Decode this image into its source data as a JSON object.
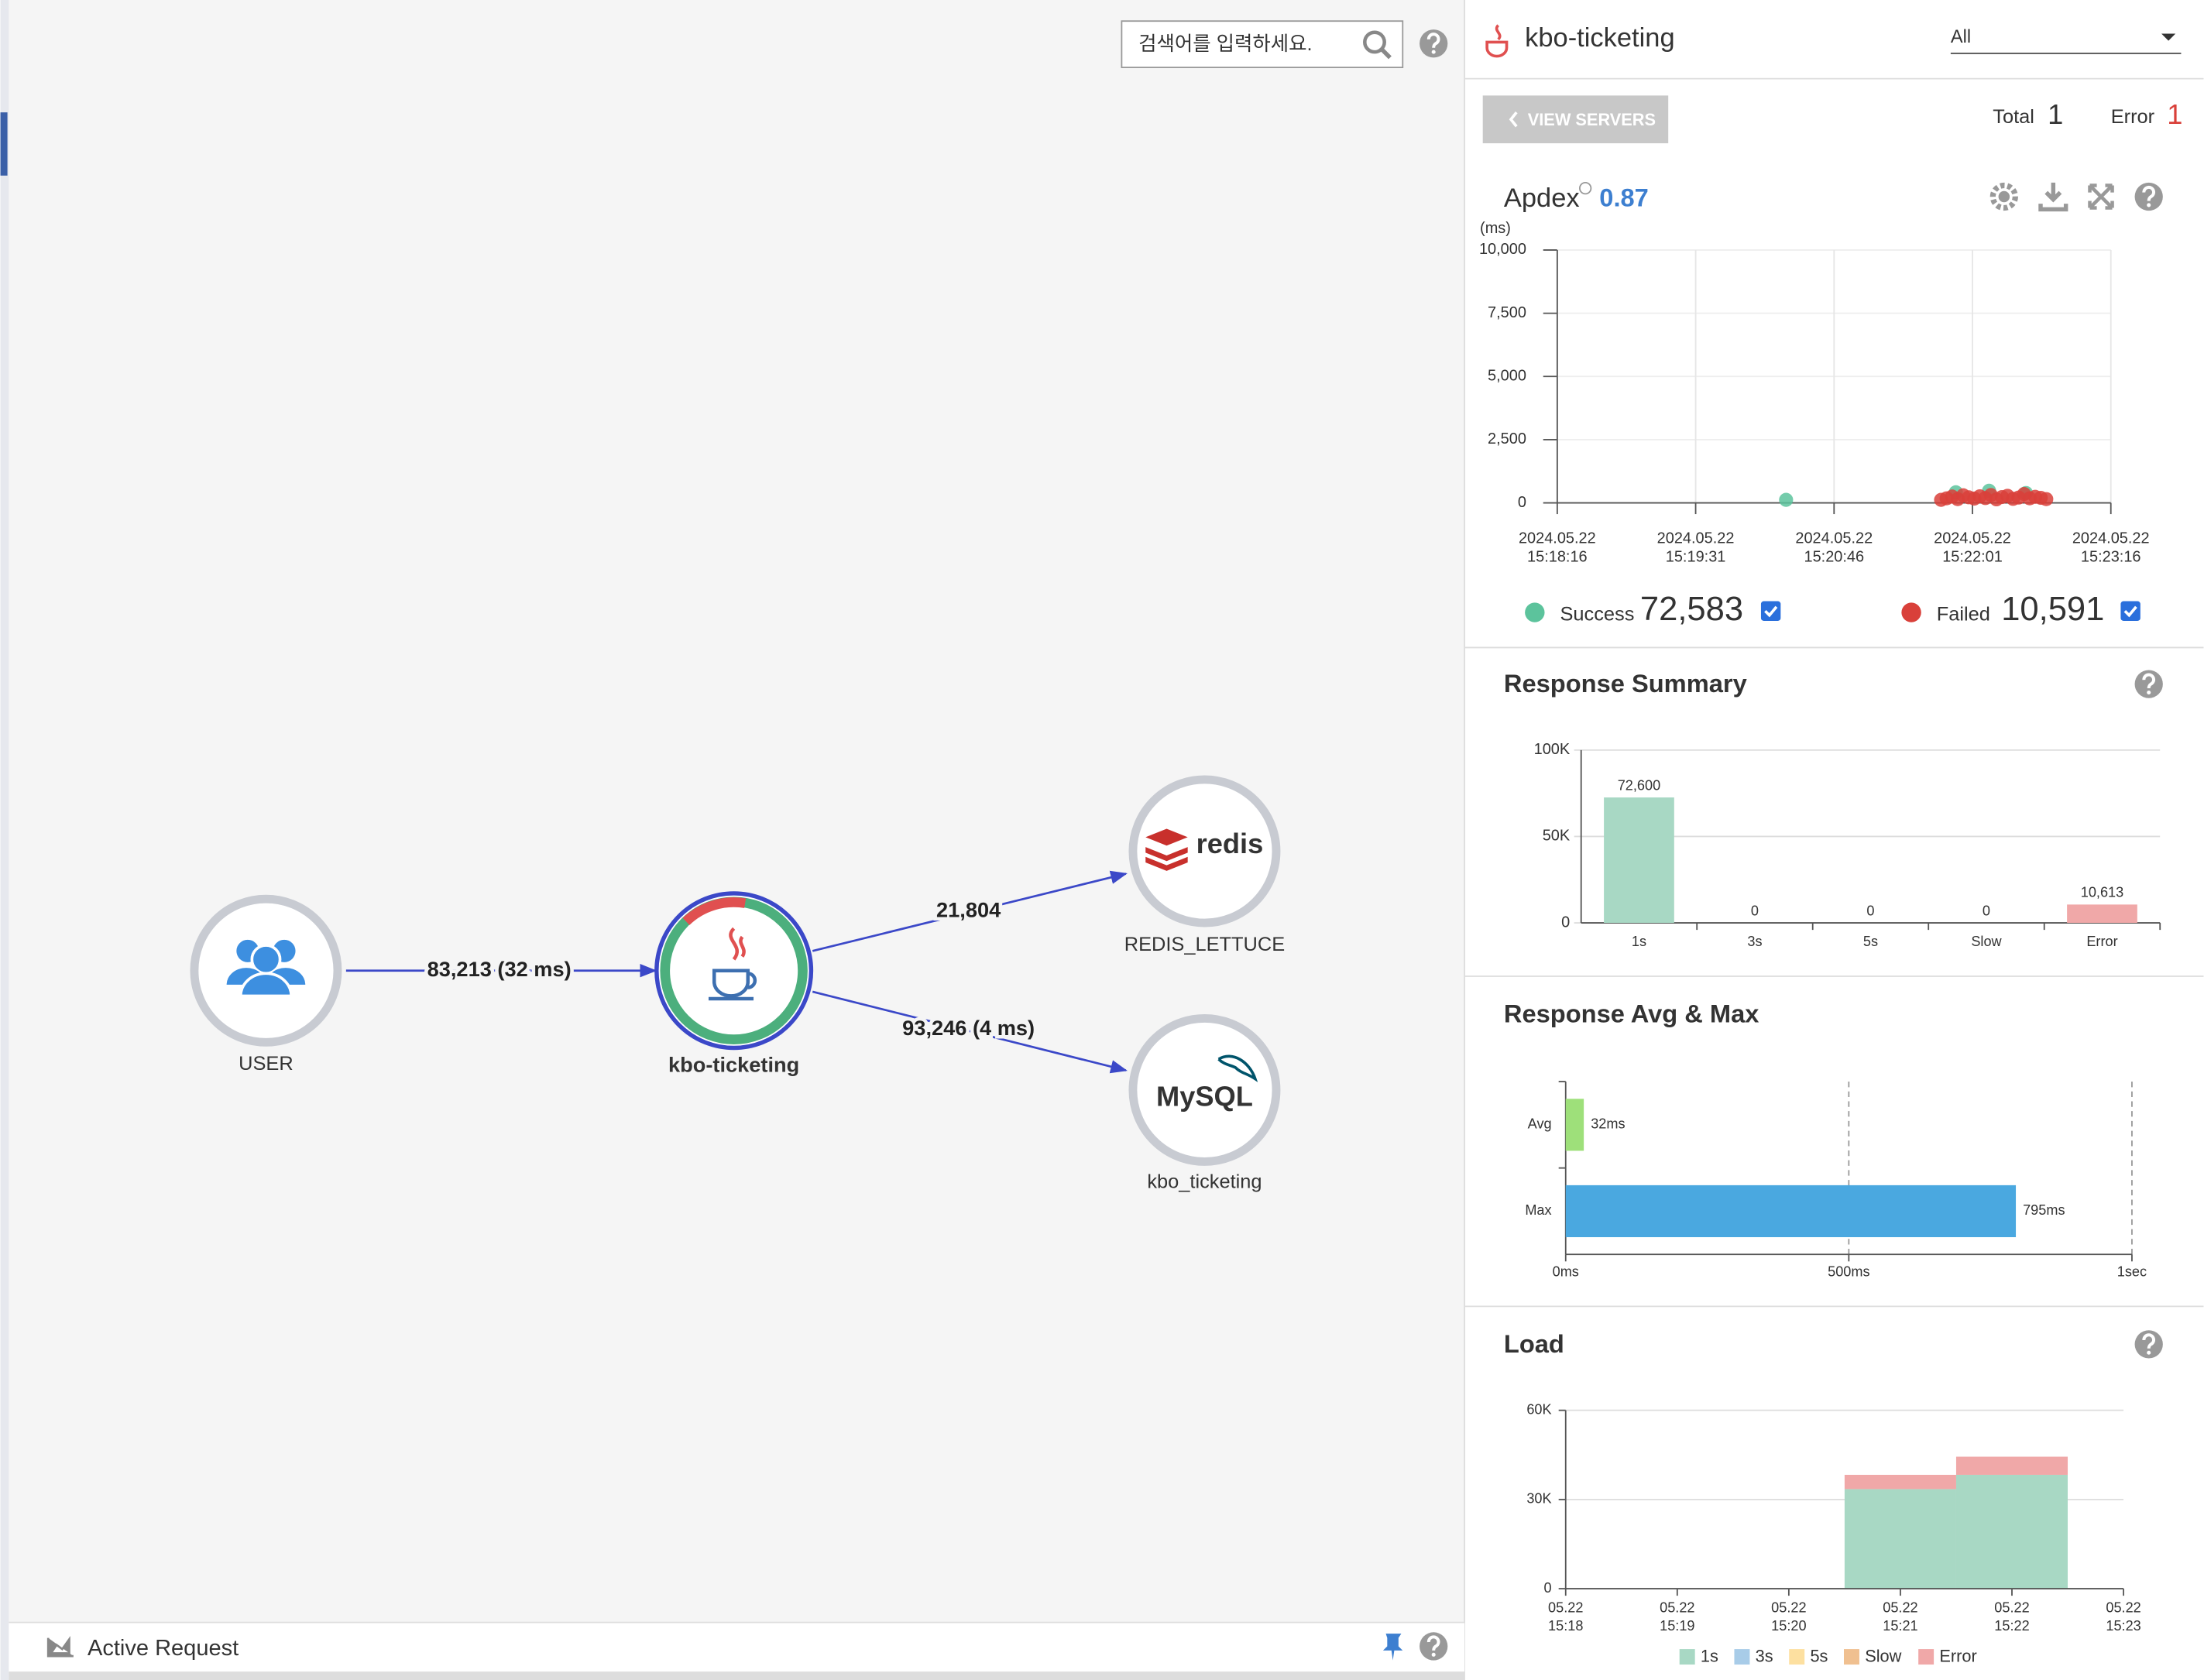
{
  "search": {
    "placeholder": "검색어를 입력하세요."
  },
  "topology": {
    "nodes": [
      {
        "label": "USER"
      },
      {
        "label": "kbo-ticketing"
      },
      {
        "label": "REDIS_LETTUCE",
        "logo": "redis"
      },
      {
        "label": "kbo_ticketing",
        "logo": "MySQL"
      }
    ],
    "edges": [
      {
        "label": "83,213 (32 ms)"
      },
      {
        "label": "21,804"
      },
      {
        "label": "93,246 (4 ms)"
      }
    ]
  },
  "footer": {
    "title": "Active Request"
  },
  "panel": {
    "title": "kbo-ticketing",
    "filter": "All",
    "button": "VIEW SERVERS",
    "total_label": "Total",
    "total": "1",
    "error_label": "Error",
    "error": "1"
  },
  "chart_data": [
    {
      "type": "scatter",
      "title": "Apdex",
      "apdex": "0.87",
      "y_label": "(ms)",
      "grid": true,
      "xlim": [
        "2024.05.22 15:18:16",
        "2024.05.22 15:23:16"
      ],
      "xticks": [
        "2024.05.22 15:18:16",
        "2024.05.22 15:19:31",
        "2024.05.22 15:20:46",
        "2024.05.22 15:22:01",
        "2024.05.22 15:23:16"
      ],
      "ylim": [
        0,
        10000
      ],
      "yticks": [
        0,
        {
          "value": 2500,
          "label": "2,500"
        },
        {
          "value": 5000,
          "label": "5,000"
        },
        {
          "value": 7500,
          "label": "7,500"
        },
        {
          "value": 10000,
          "label": "10,000"
        }
      ],
      "series": [
        {
          "name": "Success",
          "color": "#5cc39c",
          "total": "72,583",
          "x": [
            "2024.05.22 15:20:20",
            "2024.05.22 15:21:52",
            "2024.05.22 15:22:10",
            "2024.05.22 15:22:30"
          ],
          "values": [
            120,
            420,
            480,
            390
          ]
        },
        {
          "name": "Failed",
          "color": "#d9403a",
          "total": "10,591",
          "x": [
            "2024.05.22 15:21:44",
            "2024.05.22 15:21:47",
            "2024.05.22 15:21:50",
            "2024.05.22 15:21:53",
            "2024.05.22 15:21:56",
            "2024.05.22 15:21:59",
            "2024.05.22 15:22:02",
            "2024.05.22 15:22:05",
            "2024.05.22 15:22:08",
            "2024.05.22 15:22:11",
            "2024.05.22 15:22:14",
            "2024.05.22 15:22:17",
            "2024.05.22 15:22:20",
            "2024.05.22 15:22:23",
            "2024.05.22 15:22:26",
            "2024.05.22 15:22:29",
            "2024.05.22 15:22:32",
            "2024.05.22 15:22:35",
            "2024.05.22 15:22:38",
            "2024.05.22 15:22:41"
          ],
          "values": [
            120,
            180,
            250,
            150,
            300,
            220,
            170,
            260,
            190,
            310,
            140,
            230,
            280,
            160,
            210,
            350,
            180,
            240,
            200,
            150
          ]
        }
      ]
    },
    {
      "type": "bar",
      "title": "Response Summary",
      "grid": true,
      "categories": [
        "1s",
        "3s",
        "5s",
        "Slow",
        "Error"
      ],
      "values": [
        72600,
        0,
        0,
        0,
        10613
      ],
      "value_labels": [
        "72,600",
        "0",
        "0",
        "0",
        "10,613"
      ],
      "colors": [
        "#a8d8c4",
        "#a8cce8",
        "#fde0a0",
        "#f0c090",
        "#f0a8a8"
      ],
      "ylim": [
        0,
        100000
      ],
      "yticks": [
        0,
        {
          "value": 50000,
          "label": "50K"
        },
        {
          "value": 100000,
          "label": "100K"
        }
      ]
    },
    {
      "type": "hbar",
      "title": "Response Avg & Max",
      "grid": true,
      "categories": [
        "Avg",
        "Max"
      ],
      "values": [
        32,
        795
      ],
      "value_labels": [
        "32ms",
        "795ms"
      ],
      "colors": [
        "#9ee07a",
        "#4aa8e0"
      ],
      "xlim": [
        0,
        1000
      ],
      "xticks": [
        {
          "value": 0,
          "label": "0ms"
        },
        {
          "value": 500,
          "label": "500ms"
        },
        {
          "value": 1000,
          "label": "1sec"
        }
      ]
    },
    {
      "type": "stacked_bar",
      "title": "Load",
      "grid": true,
      "categories": [
        "05.22 15:18",
        "05.22 15:19",
        "05.22 15:20",
        "05.22 15:21",
        "05.22 15:22",
        "05.22 15:23"
      ],
      "ylim": [
        0,
        60000
      ],
      "yticks": [
        0,
        {
          "value": 30000,
          "label": "30K"
        },
        {
          "value": 60000,
          "label": "60K"
        }
      ],
      "series": [
        {
          "name": "1s",
          "color": "#a8d8c4",
          "values": [
            0,
            0,
            0,
            33500,
            38300,
            0
          ]
        },
        {
          "name": "3s",
          "color": "#a8cce8",
          "values": [
            0,
            0,
            0,
            0,
            0,
            0
          ]
        },
        {
          "name": "5s",
          "color": "#fde0a0",
          "values": [
            0,
            0,
            0,
            0,
            0,
            0
          ]
        },
        {
          "name": "Slow",
          "color": "#f0c090",
          "values": [
            0,
            0,
            0,
            0,
            0,
            0
          ]
        },
        {
          "name": "Error",
          "color": "#f0a8a8",
          "values": [
            0,
            0,
            0,
            4800,
            6100,
            0
          ]
        }
      ]
    }
  ]
}
